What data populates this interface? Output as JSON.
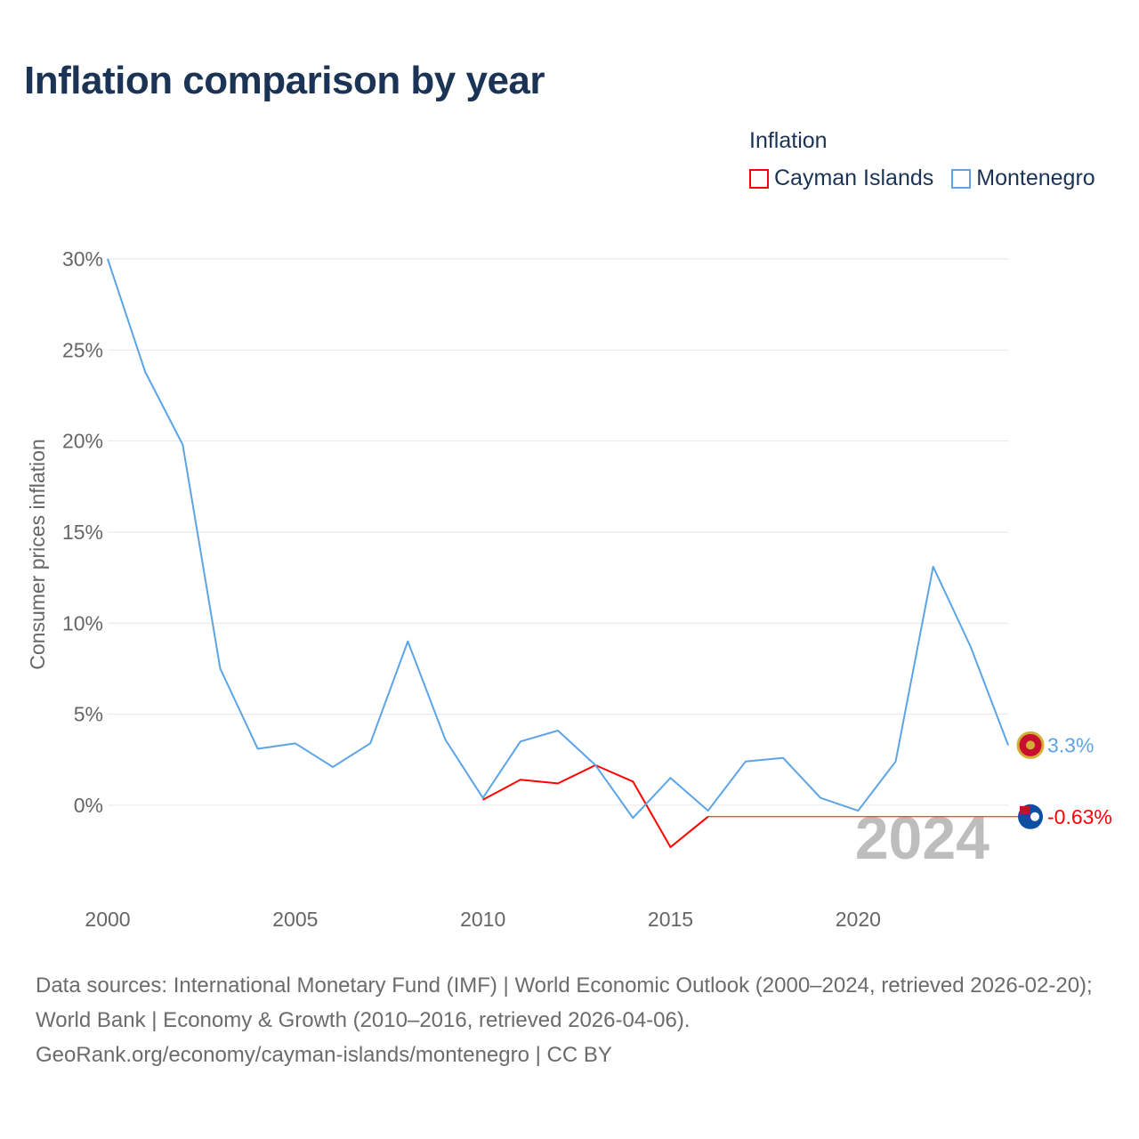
{
  "title": "Inflation comparison by year",
  "legend": {
    "title": "Inflation",
    "items": [
      {
        "label": "Cayman Islands",
        "color": "#ff0000"
      },
      {
        "label": "Montenegro",
        "color": "#5ba4e6"
      }
    ]
  },
  "source": {
    "line1": "Data sources: International Monetary Fund (IMF) | World Economic Outlook (2000–2024, retrieved 2026-02-20); World Bank | Economy & Growth (2010–2016, retrieved 2026-04-06).",
    "line2": "GeoRank.org/economy/cayman-islands/montenegro | CC BY"
  },
  "chart_data": {
    "type": "line",
    "title": "Inflation comparison by year",
    "xlabel": "",
    "ylabel": "Consumer prices inflation",
    "xlim": [
      2000,
      2024
    ],
    "ylim": [
      -4.5,
      30
    ],
    "x_ticks": [
      2000,
      2005,
      2010,
      2015,
      2020
    ],
    "y_ticks": [
      0,
      5,
      10,
      15,
      20,
      25,
      30
    ],
    "y_tick_labels": [
      "0%",
      "5%",
      "10%",
      "15%",
      "20%",
      "25%",
      "30%"
    ],
    "grid": true,
    "year_watermark": "2024",
    "series": [
      {
        "name": "Montenegro",
        "color": "#5ba4e6",
        "x": [
          2000,
          2001,
          2002,
          2003,
          2004,
          2005,
          2006,
          2007,
          2008,
          2009,
          2010,
          2011,
          2012,
          2013,
          2014,
          2015,
          2016,
          2017,
          2018,
          2019,
          2020,
          2021,
          2022,
          2023,
          2024
        ],
        "values": [
          30.0,
          23.8,
          19.8,
          7.5,
          3.1,
          3.4,
          2.1,
          3.4,
          9.0,
          3.6,
          0.4,
          3.5,
          4.1,
          2.2,
          -0.7,
          1.5,
          -0.3,
          2.4,
          2.6,
          0.4,
          -0.3,
          2.4,
          13.1,
          8.7,
          3.3
        ],
        "end_label": "3.3%"
      },
      {
        "name": "Cayman Islands",
        "color": "#ff0000",
        "x": [
          2010,
          2011,
          2012,
          2013,
          2014,
          2015,
          2016
        ],
        "values": [
          0.3,
          1.4,
          1.2,
          2.2,
          1.3,
          -2.3,
          -0.63
        ],
        "carried_to": 2024,
        "end_label": "-0.63%"
      }
    ]
  }
}
